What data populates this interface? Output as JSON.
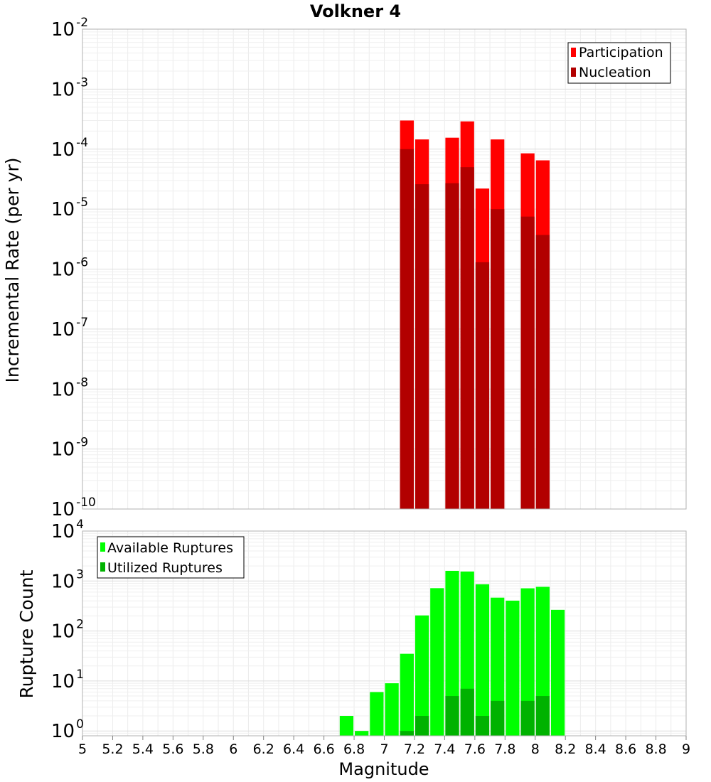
{
  "chart_data": [
    {
      "type": "bar",
      "title": "Volkner 4",
      "xlabel": "",
      "ylabel": "Incremental Rate (per yr)",
      "xlim": [
        5,
        9
      ],
      "ylim": [
        1e-10,
        0.01
      ],
      "yscale": "log",
      "grid": true,
      "legend_position": "top-right",
      "y_tick_exponents": [
        "-10",
        "-9",
        "-8",
        "-7",
        "-6",
        "-5",
        "-4",
        "-3",
        "-2"
      ],
      "bin_width": 0.1,
      "series": [
        {
          "name": "Participation",
          "color": "#ff0000",
          "points": [
            {
              "x": 7.15,
              "y": 0.0003
            },
            {
              "x": 7.25,
              "y": 0.000145
            },
            {
              "x": 7.45,
              "y": 0.000155
            },
            {
              "x": 7.55,
              "y": 0.00029
            },
            {
              "x": 7.65,
              "y": 2.2e-05
            },
            {
              "x": 7.75,
              "y": 0.000145
            },
            {
              "x": 7.95,
              "y": 8.5e-05
            },
            {
              "x": 8.05,
              "y": 6.5e-05
            }
          ]
        },
        {
          "name": "Nucleation",
          "color": "#b20000",
          "points": [
            {
              "x": 7.15,
              "y": 0.0001
            },
            {
              "x": 7.25,
              "y": 2.6e-05
            },
            {
              "x": 7.45,
              "y": 2.7e-05
            },
            {
              "x": 7.55,
              "y": 5e-05
            },
            {
              "x": 7.65,
              "y": 1.3e-06
            },
            {
              "x": 7.75,
              "y": 1e-05
            },
            {
              "x": 7.95,
              "y": 7.5e-06
            },
            {
              "x": 8.05,
              "y": 3.7e-06
            }
          ]
        }
      ]
    },
    {
      "type": "bar",
      "title": "",
      "xlabel": "Magnitude",
      "ylabel": "Rupture Count",
      "xlim": [
        5,
        9
      ],
      "ylim": [
        0.8,
        10000
      ],
      "yscale": "log",
      "grid": true,
      "legend_position": "top-left",
      "x_ticks": [
        "5",
        "5.2",
        "5.4",
        "5.6",
        "5.8",
        "6",
        "6.2",
        "6.4",
        "6.6",
        "6.8",
        "7",
        "7.2",
        "7.4",
        "7.6",
        "7.8",
        "8",
        "8.2",
        "8.4",
        "8.6",
        "8.8",
        "9"
      ],
      "y_tick_exponents": [
        "0",
        "1",
        "2",
        "3",
        "4"
      ],
      "bin_width": 0.1,
      "series": [
        {
          "name": "Available Ruptures",
          "color": "#00ff00",
          "points": [
            {
              "x": 6.75,
              "y": 2
            },
            {
              "x": 6.85,
              "y": 1
            },
            {
              "x": 6.95,
              "y": 6
            },
            {
              "x": 7.05,
              "y": 9
            },
            {
              "x": 7.15,
              "y": 35
            },
            {
              "x": 7.25,
              "y": 205
            },
            {
              "x": 7.35,
              "y": 720
            },
            {
              "x": 7.45,
              "y": 1600
            },
            {
              "x": 7.55,
              "y": 1550
            },
            {
              "x": 7.65,
              "y": 860
            },
            {
              "x": 7.75,
              "y": 465
            },
            {
              "x": 7.85,
              "y": 405
            },
            {
              "x": 7.95,
              "y": 715
            },
            {
              "x": 8.05,
              "y": 765
            },
            {
              "x": 8.15,
              "y": 265
            }
          ]
        },
        {
          "name": "Utilized Ruptures",
          "color": "#00b200",
          "points": [
            {
              "x": 7.15,
              "y": 1
            },
            {
              "x": 7.25,
              "y": 2
            },
            {
              "x": 7.45,
              "y": 5
            },
            {
              "x": 7.55,
              "y": 7
            },
            {
              "x": 7.65,
              "y": 2
            },
            {
              "x": 7.75,
              "y": 4
            },
            {
              "x": 7.95,
              "y": 4
            },
            {
              "x": 8.05,
              "y": 5
            }
          ]
        }
      ]
    }
  ]
}
